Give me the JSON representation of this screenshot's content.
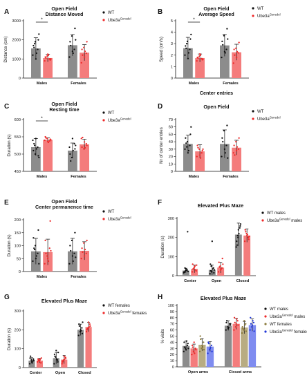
{
  "colors": {
    "wt": "#8c8c8c",
    "ko": "#f47c7c",
    "wt_f": "#b8ac82",
    "ko_f": "#7f8cf0",
    "dot_wt": "#111111",
    "dot_ko": "#ee2a2a",
    "dot_wtf": "#8a7a3a",
    "dot_kof": "#2238d8"
  },
  "chart_data": [
    {
      "id": "A",
      "label": "A",
      "title": [
        "Open Field",
        "Distance Moved"
      ],
      "type": "bar",
      "ylabel": "Distance (cm)",
      "ylim": [
        0,
        3000
      ],
      "yticks": [
        0,
        1000,
        2000,
        3000
      ],
      "categories": [
        "Males",
        "Females"
      ],
      "series": [
        {
          "name": "WT",
          "key": "wt",
          "values": [
            1550,
            1720
          ],
          "errors": [
            560,
            560
          ],
          "points": [
            [
              1200,
              1900,
              1500,
              1700,
              1000,
              2000,
              1600,
              1300,
              2300,
              1800
            ],
            [
              1100,
              2200,
              1500,
              1900,
              1400,
              2600,
              1700,
              1300,
              2000
            ]
          ]
        },
        {
          "name": "Ube3a",
          "sup": "Genedel",
          "key": "ko",
          "values": [
            1050,
            1330
          ],
          "errors": [
            200,
            420
          ],
          "points": [
            [
              900,
              1150,
              1000,
              1100,
              1250,
              950,
              1050,
              1200,
              1000
            ],
            [
              800,
              1600,
              1300,
              1500,
              1100,
              1900,
              1200,
              1400
            ]
          ]
        }
      ],
      "sig": [
        {
          "cat": 0,
          "text": "*"
        }
      ]
    },
    {
      "id": "B",
      "label": "B",
      "title": [
        "Open  Field",
        "Average Speed"
      ],
      "type": "bar",
      "ylabel": "Speed (cm/s)",
      "ylim": [
        0,
        5
      ],
      "yticks": [
        0,
        1,
        2,
        3,
        4,
        5
      ],
      "categories": [
        "Males",
        "Females"
      ],
      "series": [
        {
          "name": "WT",
          "key": "wt",
          "values": [
            2.6,
            2.85
          ],
          "errors": [
            0.95,
            0.95
          ],
          "points": [
            [
              2.0,
              3.2,
              2.5,
              2.8,
              1.7,
              3.4,
              2.6,
              2.2,
              3.8,
              3.0
            ],
            [
              1.8,
              3.7,
              2.5,
              3.2,
              2.3,
              4.3,
              2.9,
              2.2,
              3.4
            ]
          ]
        },
        {
          "name": "Ube3a",
          "sup": "Genedel",
          "key": "ko",
          "values": [
            1.75,
            2.25
          ],
          "errors": [
            0.35,
            0.7
          ],
          "points": [
            [
              1.5,
              1.9,
              1.7,
              1.8,
              2.1,
              1.6,
              1.75,
              2.0,
              1.65
            ],
            [
              1.3,
              2.6,
              2.2,
              2.5,
              1.8,
              3.1,
              2.0,
              2.3
            ]
          ]
        }
      ],
      "sig": [
        {
          "cat": 0,
          "text": "*"
        }
      ]
    },
    {
      "id": "C",
      "label": "C",
      "title": [
        "Open Field",
        "Resting time"
      ],
      "type": "bar",
      "ylabel": "Duration (s)",
      "ylim": [
        450,
        600
      ],
      "yticks": [
        450,
        500,
        550,
        600
      ],
      "categories": [
        "Males",
        "Females"
      ],
      "series": [
        {
          "name": "WT",
          "key": "wt",
          "values": [
            520,
            510
          ],
          "errors": [
            25,
            22
          ],
          "points": [
            [
              540,
              500,
              520,
              510,
              545,
              495,
              530,
              515,
              490,
              525
            ],
            [
              520,
              490,
              530,
              500,
              545,
              515,
              480,
              510,
              525
            ]
          ]
        },
        {
          "name": "Ube3a",
          "sup": "Genedel",
          "key": "ko",
          "values": [
            541,
            528
          ],
          "errors": [
            6,
            15
          ],
          "points": [
            [
              540,
              545,
              538,
              550,
              536,
              543,
              547,
              534,
              541
            ],
            [
              545,
              515,
              530,
              520,
              535,
              525,
              548,
              518
            ]
          ]
        }
      ],
      "sig": [
        {
          "cat": 0,
          "text": "*"
        }
      ]
    },
    {
      "id": "D",
      "label": "D",
      "title": [
        "Open Field",
        "Center entries"
      ],
      "type": "bar",
      "ylabel": "Nr of center entries",
      "ylim": [
        0,
        70
      ],
      "yticks": [
        0,
        10,
        20,
        30,
        40,
        50,
        60,
        70
      ],
      "categories": [
        "Males",
        "Females"
      ],
      "series": [
        {
          "name": "WT",
          "key": "wt",
          "values": [
            37,
            37
          ],
          "errors": [
            12,
            19
          ],
          "points": [
            [
              30,
              40,
              35,
              45,
              25,
              50,
              38,
              28,
              60,
              33
            ],
            [
              20,
              55,
              35,
              45,
              30,
              62,
              40,
              25,
              18
            ]
          ]
        },
        {
          "name": "Ube3a",
          "sup": "Genedel",
          "key": "ko",
          "values": [
            27,
            32
          ],
          "errors": [
            9,
            10
          ],
          "points": [
            [
              20,
              30,
              25,
              35,
              22,
              28,
              32,
              18,
              30
            ],
            [
              25,
              40,
              30,
              35,
              28,
              45,
              22,
              33
            ]
          ]
        }
      ]
    },
    {
      "id": "E",
      "label": "E",
      "title": [
        "Open Field",
        "Center permanence time"
      ],
      "type": "bar",
      "ylabel": "Duration (s)",
      "ylim": [
        0,
        200
      ],
      "yticks": [
        0,
        50,
        100,
        150,
        200
      ],
      "categories": [
        "Males",
        "Females"
      ],
      "series": [
        {
          "name": "WT",
          "key": "wt",
          "values": [
            78,
            78
          ],
          "errors": [
            50,
            50
          ],
          "points": [
            [
              40,
              100,
              70,
              130,
              50,
              160,
              90,
              60,
              30,
              85
            ],
            [
              30,
              120,
              70,
              100,
              60,
              150,
              80,
              40,
              55
            ]
          ]
        },
        {
          "name": "Ube3a",
          "sup": "Genedel",
          "key": "ko",
          "values": [
            75,
            80
          ],
          "errors": [
            50,
            35
          ],
          "points": [
            [
              30,
              60,
              90,
              120,
              50,
              195,
              70,
              40,
              80
            ],
            [
              50,
              110,
              70,
              90,
              60,
              120,
              75,
              85
            ]
          ]
        }
      ]
    },
    {
      "id": "F",
      "label": "F",
      "title": [
        "Elevated Plus Maze"
      ],
      "type": "bar",
      "ylabel": "Duration (s)",
      "ylim": [
        0,
        300
      ],
      "yticks": [
        0,
        100,
        200,
        300
      ],
      "categories": [
        "Center",
        "Open",
        "Closed"
      ],
      "series": [
        {
          "name": "WT males",
          "key": "wt",
          "values": [
            27,
            30,
            215
          ],
          "errors": [
            12,
            25,
            60
          ],
          "points": [
            [
              15,
              25,
              30,
              20,
              35,
              230,
              18,
              28,
              22,
              40
            ],
            [
              10,
              20,
              40,
              60,
              180,
              15,
              25,
              35,
              30,
              50
            ],
            [
              150,
              200,
              250,
              180,
              240,
              260,
              160,
              220,
              270,
              210
            ]
          ]
        },
        {
          "name": "Ube3a",
          "sup": "Genedel",
          "suffix": "males",
          "key": "ko",
          "values": [
            35,
            42,
            210
          ],
          "errors": [
            20,
            28,
            35
          ],
          "points": [
            [
              20,
              40,
              30,
              60,
              45,
              25,
              35,
              50,
              55
            ],
            [
              20,
              50,
              40,
              70,
              30,
              90,
              45,
              35,
              60
            ],
            [
              180,
              220,
              200,
              240,
              210,
              190,
              230,
              215,
              205
            ]
          ]
        }
      ]
    },
    {
      "id": "G",
      "label": "G",
      "title": [
        "Elevated Plus Maze"
      ],
      "type": "bar",
      "ylabel": "Duration (s)",
      "ylim": [
        0,
        300
      ],
      "yticks": [
        0,
        100,
        200,
        300
      ],
      "categories": [
        "Center",
        "Open",
        "Closed"
      ],
      "series": [
        {
          "name": "WT females",
          "key": "wt",
          "values": [
            37,
            50,
            200
          ],
          "errors": [
            15,
            30,
            30
          ],
          "points": [
            [
              20,
              40,
              35,
              50,
              30,
              45,
              60,
              25,
              38
            ],
            [
              20,
              55,
              40,
              70,
              90,
              30,
              60,
              45,
              80
            ],
            [
              170,
              190,
              210,
              230,
              200,
              180,
              220,
              195,
              240
            ]
          ]
        },
        {
          "name": "Ube3a",
          "sup": "Genedel",
          "suffix": "females",
          "key": "ko",
          "values": [
            37,
            42,
            215
          ],
          "errors": [
            12,
            22,
            25
          ],
          "points": [
            [
              30,
              40,
              25,
              45,
              35,
              50,
              38,
              42
            ],
            [
              20,
              40,
              55,
              30,
              60,
              50,
              35,
              45
            ],
            [
              190,
              210,
              230,
              200,
              240,
              220,
              205,
              215
            ]
          ]
        }
      ]
    },
    {
      "id": "H",
      "label": "H",
      "title": [
        "Elevated Plus Maze"
      ],
      "type": "bar",
      "ylabel": "% visits",
      "ylim": [
        0,
        100
      ],
      "yticks": [
        0,
        10,
        20,
        30,
        40,
        50,
        60,
        70,
        80,
        90,
        100
      ],
      "categories": [
        "Open arms",
        "Closed arms"
      ],
      "series": [
        {
          "name": "WT males",
          "key": "wt",
          "values": [
            34,
            67
          ],
          "errors": [
            8,
            8
          ],
          "points": [
            [
              25,
              30,
              35,
              40,
              28,
              38,
              32,
              42,
              30
            ],
            [
              60,
              65,
              70,
              72,
              62,
              68,
              75,
              64,
              70
            ]
          ]
        },
        {
          "name": "Ube3a",
          "sup": "Genedel",
          "suffix": "males",
          "key": "ko",
          "values": [
            30,
            70
          ],
          "errors": [
            7,
            9
          ],
          "points": [
            [
              20,
              25,
              30,
              35,
              40,
              28,
              32,
              22
            ],
            [
              60,
              65,
              75,
              80,
              70,
              68,
              72,
              78
            ]
          ]
        },
        {
          "name": "WT females",
          "key": "wt_f",
          "values": [
            36,
            64
          ],
          "errors": [
            10,
            10
          ],
          "points": [
            [
              25,
              30,
              40,
              50,
              35,
              28,
              45,
              32
            ],
            [
              55,
              60,
              70,
              65,
              75,
              58,
              62,
              68
            ]
          ]
        },
        {
          "name": "Ube3a",
          "sup": "Genedel",
          "suffix": "females",
          "key": "ko_f",
          "values": [
            33,
            68
          ],
          "errors": [
            8,
            10
          ],
          "points": [
            [
              22,
              28,
              35,
              40,
              30,
              25,
              38,
              32
            ],
            [
              60,
              65,
              72,
              80,
              68,
              58,
              70,
              75
            ]
          ]
        }
      ]
    }
  ]
}
